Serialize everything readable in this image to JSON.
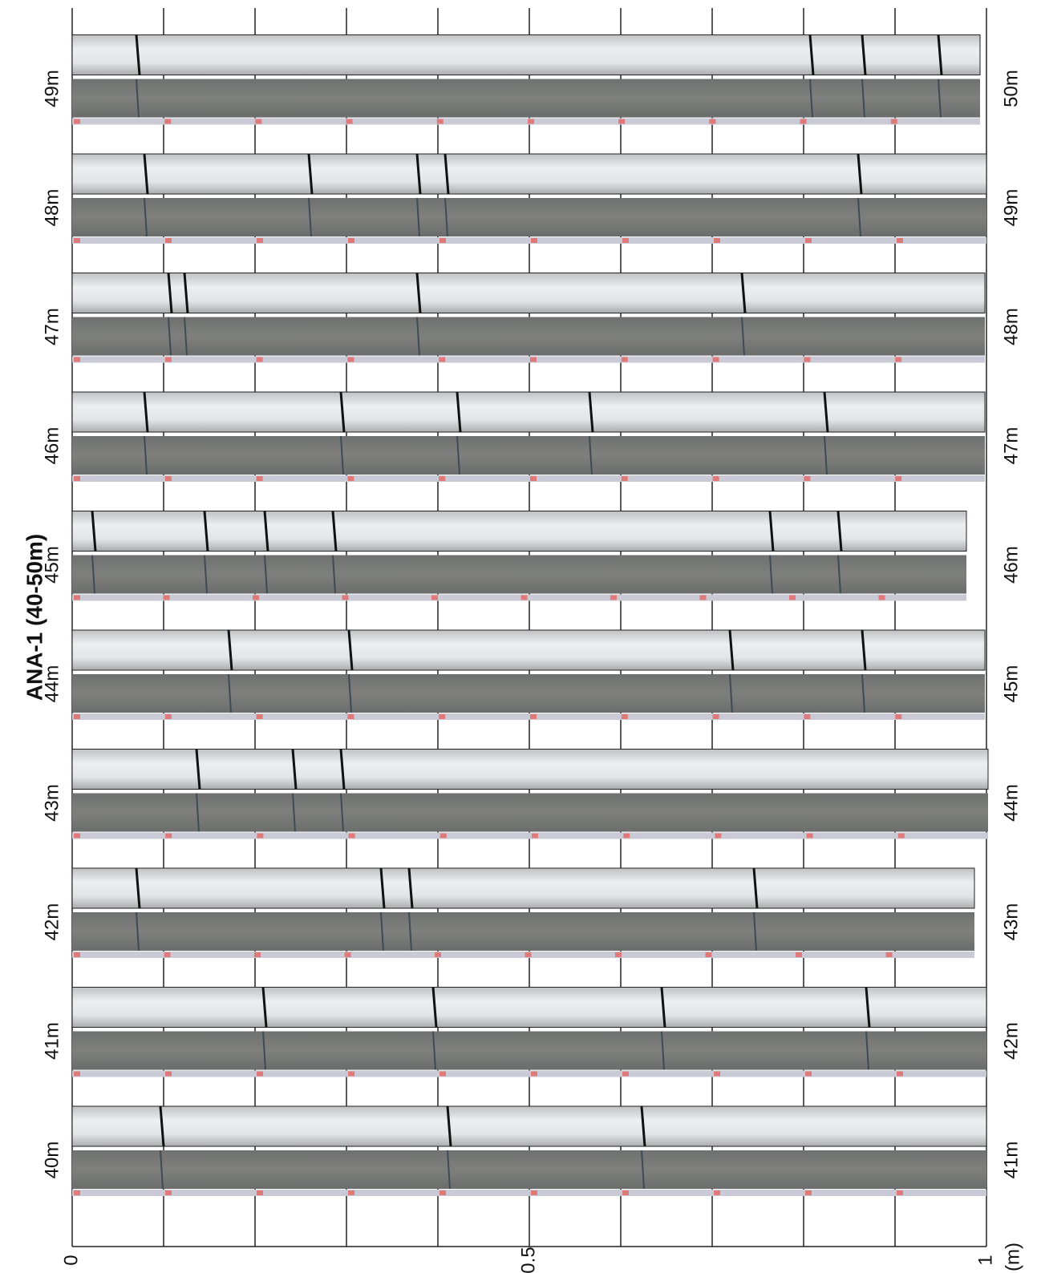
{
  "title": "ANA-1 (40-50m)",
  "rows": [
    {
      "top": "40m",
      "bottom": "41m"
    },
    {
      "top": "41m",
      "bottom": "42m"
    },
    {
      "top": "42m",
      "bottom": "43m"
    },
    {
      "top": "43m",
      "bottom": "44m"
    },
    {
      "top": "44m",
      "bottom": "45m"
    },
    {
      "top": "45m",
      "bottom": "46m"
    },
    {
      "top": "46m",
      "bottom": "47m"
    },
    {
      "top": "47m",
      "bottom": "48m"
    },
    {
      "top": "48m",
      "bottom": "49m"
    },
    {
      "top": "49m",
      "bottom": "50m"
    }
  ],
  "axis": {
    "labels": [
      "0",
      "0.5",
      "1"
    ],
    "unit": "(m)"
  }
}
